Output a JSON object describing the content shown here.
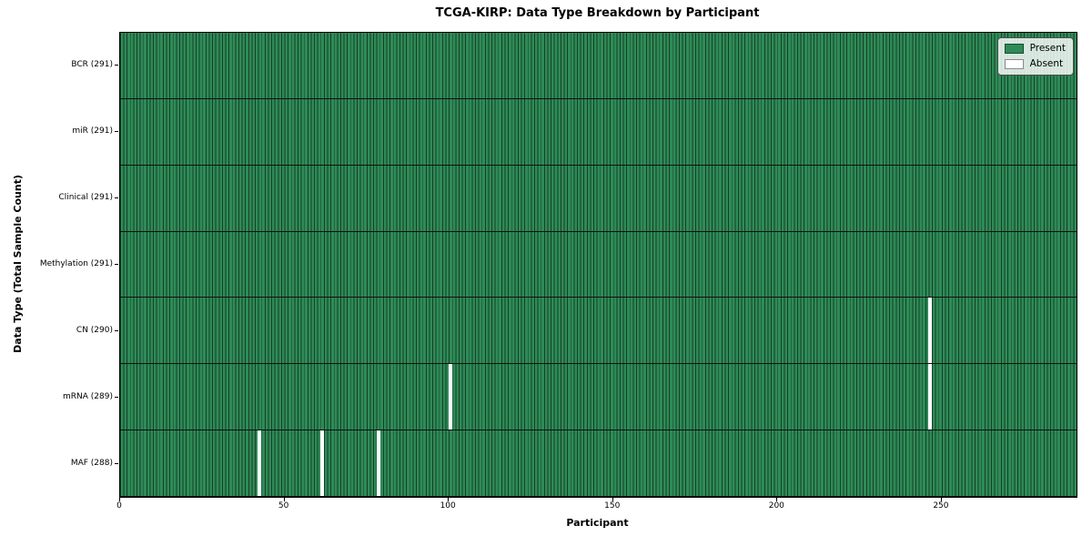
{
  "chart_data": {
    "type": "heatmap",
    "title": "TCGA-KIRP: Data Type Breakdown by Participant",
    "xlabel": "Participant",
    "ylabel": "Data Type (Total Sample Count)",
    "xlim": [
      0,
      291
    ],
    "x_ticks": [
      0,
      50,
      100,
      150,
      200,
      250
    ],
    "n_participants": 291,
    "legend": [
      "Present",
      "Absent"
    ],
    "legend_position": "upper right",
    "grid": "row separators only",
    "rows": [
      {
        "data_type": "BCR",
        "label": "BCR (291)",
        "present_count": 291,
        "absent_participants": []
      },
      {
        "data_type": "miR",
        "label": "miR (291)",
        "present_count": 291,
        "absent_participants": []
      },
      {
        "data_type": "Clinical",
        "label": "Clinical (291)",
        "present_count": 291,
        "absent_participants": []
      },
      {
        "data_type": "Methylation",
        "label": "Methylation (291)",
        "present_count": 291,
        "absent_participants": []
      },
      {
        "data_type": "CN",
        "label": "CN (290)",
        "present_count": 290,
        "absent_participants": [
          246
        ]
      },
      {
        "data_type": "mRNA",
        "label": "mRNA (289)",
        "present_count": 289,
        "absent_participants": [
          100,
          246
        ]
      },
      {
        "data_type": "MAF",
        "label": "MAF (288)",
        "present_count": 288,
        "absent_participants": [
          42,
          61,
          78
        ]
      }
    ]
  },
  "colors": {
    "present": "#2e8b57",
    "absent": "#ffffff",
    "bar_edge": "rgba(0,0,0,0.55)",
    "row_separator": "#101010",
    "axis": "#000000",
    "legend_border": "#4d4d4d",
    "legend_bg": "rgba(255,255,255,0.82)"
  }
}
